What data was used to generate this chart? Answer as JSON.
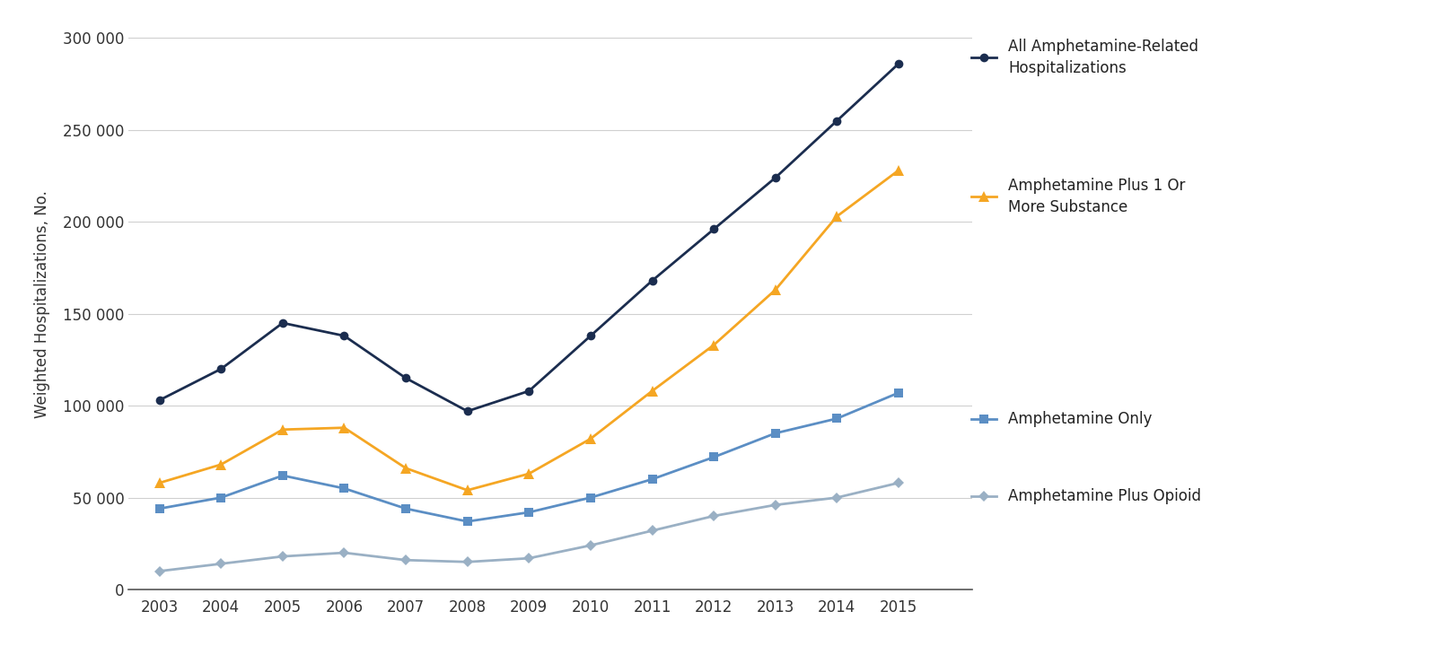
{
  "years": [
    2003,
    2004,
    2005,
    2006,
    2007,
    2008,
    2009,
    2010,
    2011,
    2012,
    2013,
    2014,
    2015
  ],
  "all_amphetamine": [
    103000,
    120000,
    145000,
    138000,
    115000,
    97000,
    108000,
    138000,
    168000,
    196000,
    224000,
    255000,
    286000
  ],
  "plus_substance": [
    58000,
    68000,
    87000,
    88000,
    66000,
    54000,
    63000,
    82000,
    108000,
    133000,
    163000,
    203000,
    228000
  ],
  "amph_only": [
    44000,
    50000,
    62000,
    55000,
    44000,
    37000,
    42000,
    50000,
    60000,
    72000,
    85000,
    93000,
    107000
  ],
  "plus_opioid": [
    10000,
    14000,
    18000,
    20000,
    16000,
    15000,
    17000,
    24000,
    32000,
    40000,
    46000,
    50000,
    58000
  ],
  "colors": {
    "all_amphetamine": "#1b2d4f",
    "plus_substance": "#f5a623",
    "amph_only": "#5b8ec4",
    "plus_opioid": "#9ab0c4"
  },
  "ylabel": "Weighted Hospitalizations, No.",
  "yticks": [
    0,
    50000,
    100000,
    150000,
    200000,
    250000,
    300000
  ],
  "ytick_labels": [
    "0",
    "50 000",
    "100 000",
    "150 000",
    "200 000",
    "250 000",
    "300 000"
  ],
  "legend_labels": {
    "all_amphetamine": "All Amphetamine-Related\nHospitalizations",
    "plus_substance": "Amphetamine Plus 1 Or\nMore Substance",
    "amph_only": "Amphetamine Only",
    "plus_opioid": "Amphetamine Plus Opioid"
  },
  "background_color": "#ffffff",
  "grid_color": "#d0d0d0",
  "ylim": [
    0,
    310000
  ],
  "xlim": [
    2002.5,
    2016.2
  ]
}
